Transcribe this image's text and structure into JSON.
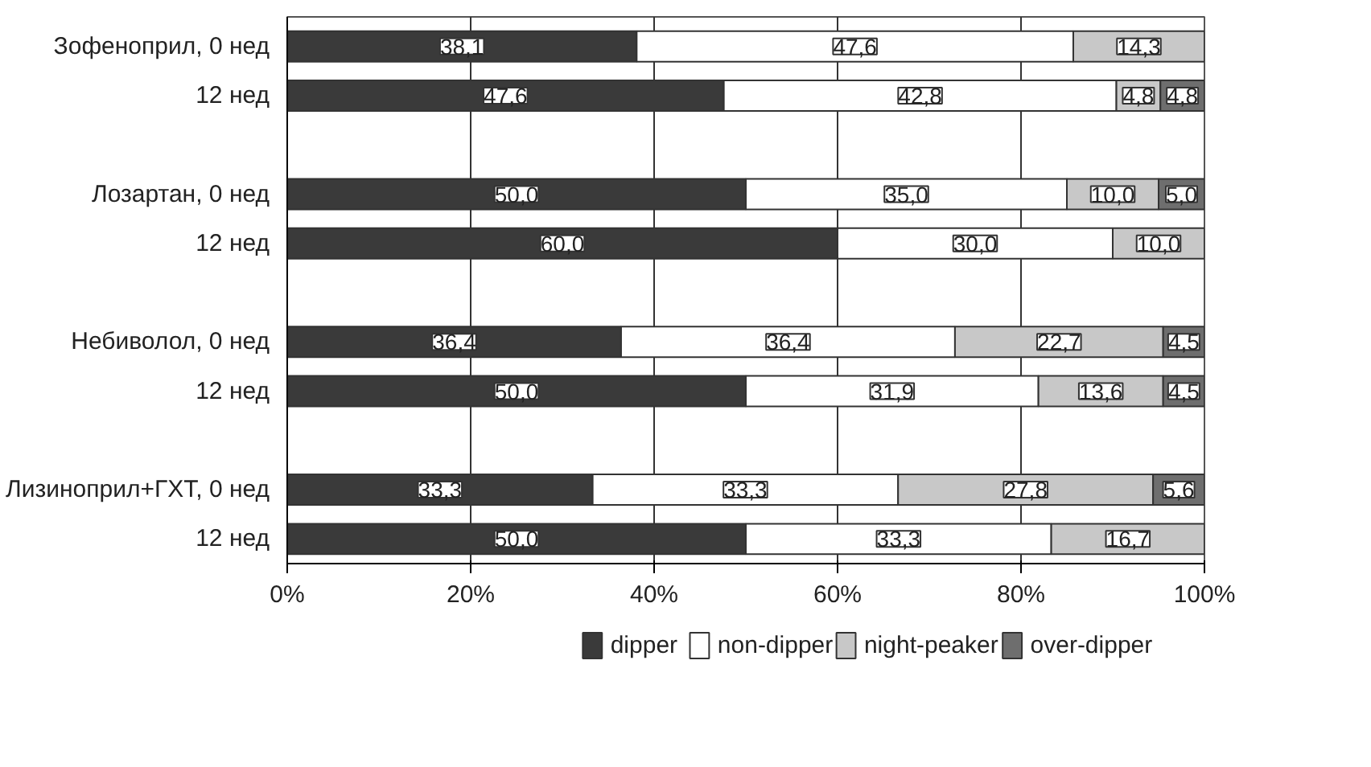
{
  "chart_data": {
    "type": "bar",
    "orientation": "horizontal",
    "stacked": true,
    "categories": [
      "Зофеноприл, 0 нед",
      "12 нед",
      null,
      "Лозартан, 0 нед",
      "12 нед",
      null,
      "Небиволол, 0 нед",
      "12 нед",
      null,
      "Лизиноприл+ГХТ, 0 нед",
      "12 нед"
    ],
    "series": [
      {
        "name": "dipper",
        "color": "#3a3a3a",
        "values": [
          38.1,
          47.6,
          null,
          50.0,
          60.0,
          null,
          36.4,
          50.0,
          null,
          33.3,
          50.0
        ],
        "value_labels": [
          "38,1",
          "47,6",
          null,
          "50,0",
          "60,0",
          null,
          "36,4",
          "50,0",
          null,
          "33,3",
          "50,0"
        ]
      },
      {
        "name": "non-dipper",
        "color": "#ffffff",
        "values": [
          47.6,
          42.8,
          null,
          35.0,
          30.0,
          null,
          36.4,
          31.9,
          null,
          33.3,
          33.3
        ],
        "value_labels": [
          "47,6",
          "42,8",
          null,
          "35,0",
          "30,0",
          null,
          "36,4",
          "31,9",
          null,
          "33,3",
          "33,3"
        ]
      },
      {
        "name": "night-peaker",
        "color": "#c8c8c8",
        "values": [
          14.3,
          4.8,
          null,
          10.0,
          10.0,
          null,
          22.7,
          13.6,
          null,
          27.8,
          16.7
        ],
        "value_labels": [
          "14,3",
          "4,8",
          null,
          "10,0",
          "10,0",
          null,
          "22,7",
          "13,6",
          null,
          "27,8",
          "16,7"
        ]
      },
      {
        "name": "over-dipper",
        "color": "#6e6e6e",
        "values": [
          null,
          4.8,
          null,
          5.0,
          null,
          null,
          4.5,
          4.5,
          null,
          5.6,
          null
        ],
        "value_labels": [
          null,
          "4,8",
          null,
          "5,0",
          null,
          null,
          "4,5",
          "4,5",
          null,
          "5,6",
          null
        ]
      }
    ],
    "xlim": [
      0,
      100
    ],
    "xticks": [
      {
        "value": 0,
        "label": "0%"
      },
      {
        "value": 20,
        "label": "20%"
      },
      {
        "value": 40,
        "label": "40%"
      },
      {
        "value": 60,
        "label": "60%"
      },
      {
        "value": 80,
        "label": "80%"
      },
      {
        "value": 100,
        "label": "100%"
      }
    ],
    "grid": "x",
    "legend": "bottom"
  }
}
